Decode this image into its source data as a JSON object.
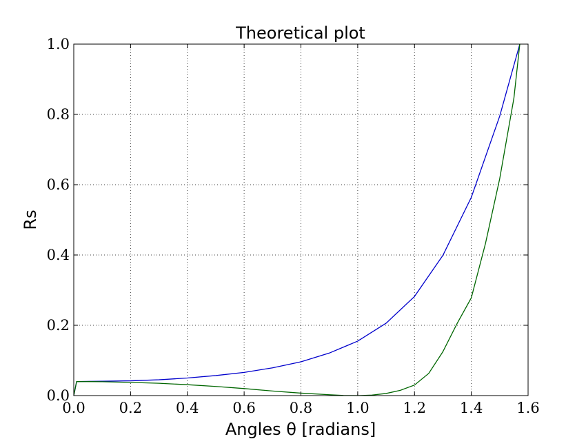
{
  "chart_data": {
    "type": "line",
    "title": "Theoretical plot",
    "xlabel": "Angles θ [radians]",
    "ylabel": "Rs",
    "xlim": [
      0.0,
      1.6
    ],
    "ylim": [
      0.0,
      1.0
    ],
    "grid": true,
    "xticks": [
      0.0,
      0.2,
      0.4,
      0.6,
      0.8,
      1.0,
      1.2,
      1.4,
      1.6
    ],
    "yticks": [
      0.0,
      0.2,
      0.4,
      0.6,
      0.8,
      1.0
    ],
    "xtick_labels": [
      "0.0",
      "0.2",
      "0.4",
      "0.6",
      "0.8",
      "1.0",
      "1.2",
      "1.4",
      "1.6"
    ],
    "ytick_labels": [
      "0.0",
      "0.2",
      "0.4",
      "0.6",
      "0.8",
      "1.0"
    ],
    "series": [
      {
        "color": "#0000cc",
        "x": [
          0.0,
          0.01,
          0.1,
          0.2,
          0.3,
          0.4,
          0.5,
          0.6,
          0.7,
          0.8,
          0.9,
          1.0,
          1.1,
          1.2,
          1.3,
          1.4,
          1.5,
          1.5708
        ],
        "y": [
          0.0,
          0.04,
          0.041,
          0.042,
          0.045,
          0.05,
          0.057,
          0.066,
          0.079,
          0.096,
          0.121,
          0.155,
          0.206,
          0.282,
          0.399,
          0.564,
          0.795,
          1.0
        ]
      },
      {
        "color": "#006600",
        "x": [
          0.0,
          0.01,
          0.1,
          0.2,
          0.3,
          0.4,
          0.5,
          0.6,
          0.7,
          0.8,
          0.9,
          0.95,
          1.0,
          1.05,
          1.1,
          1.15,
          1.2,
          1.25,
          1.3,
          1.35,
          1.4,
          1.45,
          1.5,
          1.55,
          1.5708
        ],
        "y": [
          0.0,
          0.04,
          0.0395,
          0.0375,
          0.035,
          0.031,
          0.026,
          0.02,
          0.013,
          0.007,
          0.0025,
          0.0005,
          0.0,
          0.0015,
          0.006,
          0.015,
          0.03,
          0.063,
          0.125,
          0.205,
          0.278,
          0.433,
          0.617,
          0.846,
          1.0
        ]
      }
    ]
  }
}
